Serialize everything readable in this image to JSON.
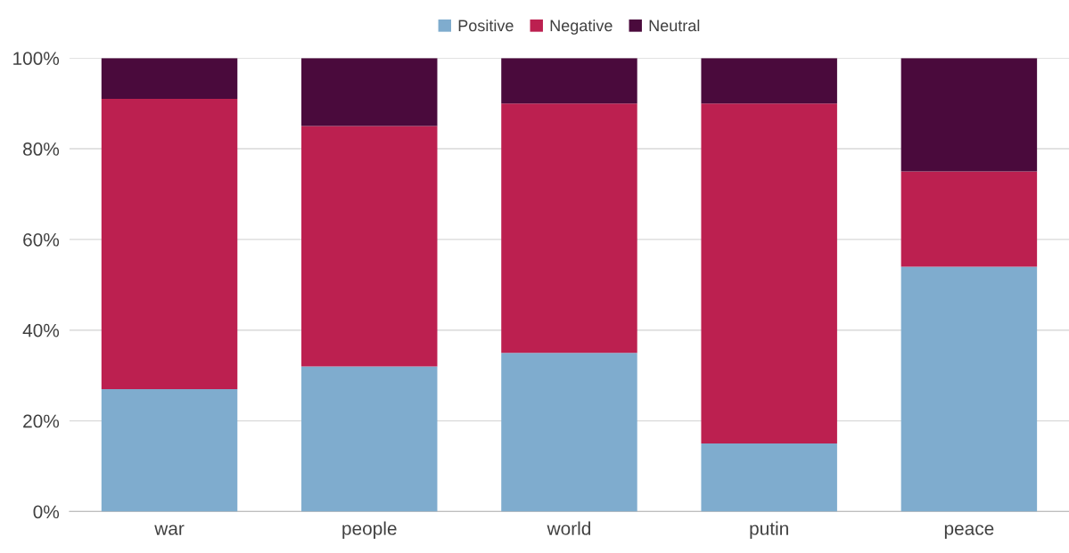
{
  "chart_data": {
    "type": "bar",
    "stacked": true,
    "categories": [
      "war",
      "people",
      "world",
      "putin",
      "peace"
    ],
    "series": [
      {
        "name": "Positive",
        "color": "#7facce",
        "values": [
          27,
          32,
          35,
          15,
          54
        ]
      },
      {
        "name": "Negative",
        "color": "#bc2050",
        "values": [
          64,
          53,
          55,
          75,
          21
        ]
      },
      {
        "name": "Neutral",
        "color": "#4a0a3c",
        "values": [
          9,
          15,
          10,
          10,
          25
        ]
      }
    ],
    "ylim": [
      0,
      100
    ],
    "yticks": [
      {
        "value": 0,
        "label": "0%"
      },
      {
        "value": 20,
        "label": "20%"
      },
      {
        "value": 40,
        "label": "40%"
      },
      {
        "value": 60,
        "label": "60%"
      },
      {
        "value": 80,
        "label": "80%"
      },
      {
        "value": 100,
        "label": "100%"
      }
    ],
    "grid": "y",
    "legend": "top"
  }
}
